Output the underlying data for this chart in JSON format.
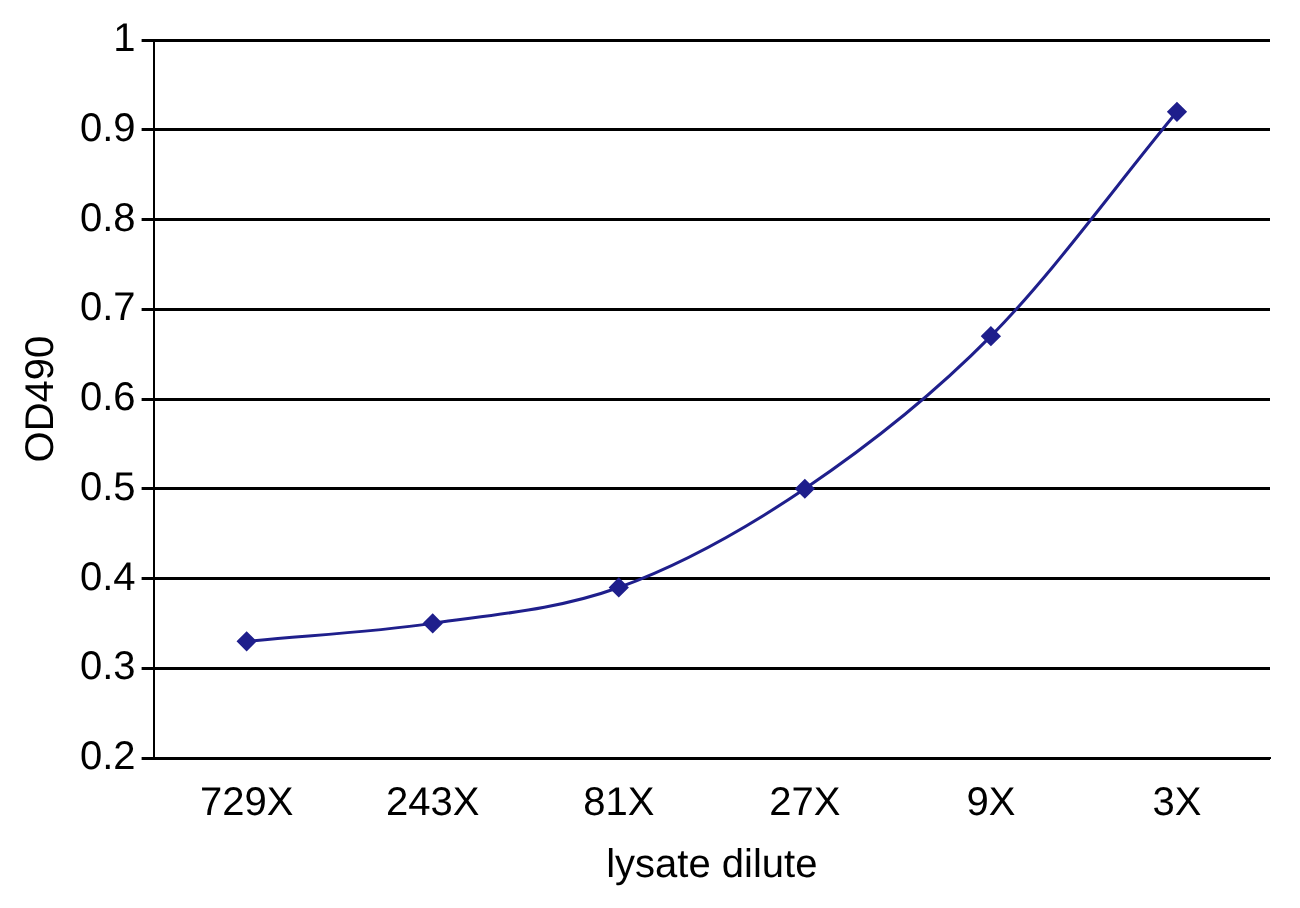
{
  "chart_data": {
    "type": "line",
    "xlabel": "lysate dilute",
    "ylabel": "OD490",
    "categories": [
      "729X",
      "243X",
      "81X",
      "27X",
      "9X",
      "3X"
    ],
    "series": [
      {
        "color": "#1f1f8c",
        "values": [
          0.33,
          0.35,
          0.39,
          0.5,
          0.67,
          0.92
        ]
      }
    ],
    "ylim": [
      0.2,
      1
    ],
    "yticks": [
      0.2,
      0.3,
      0.4,
      0.5,
      0.6,
      0.7,
      0.8,
      0.9,
      1
    ],
    "grid": "y",
    "marker": "diamond",
    "legend": false
  }
}
